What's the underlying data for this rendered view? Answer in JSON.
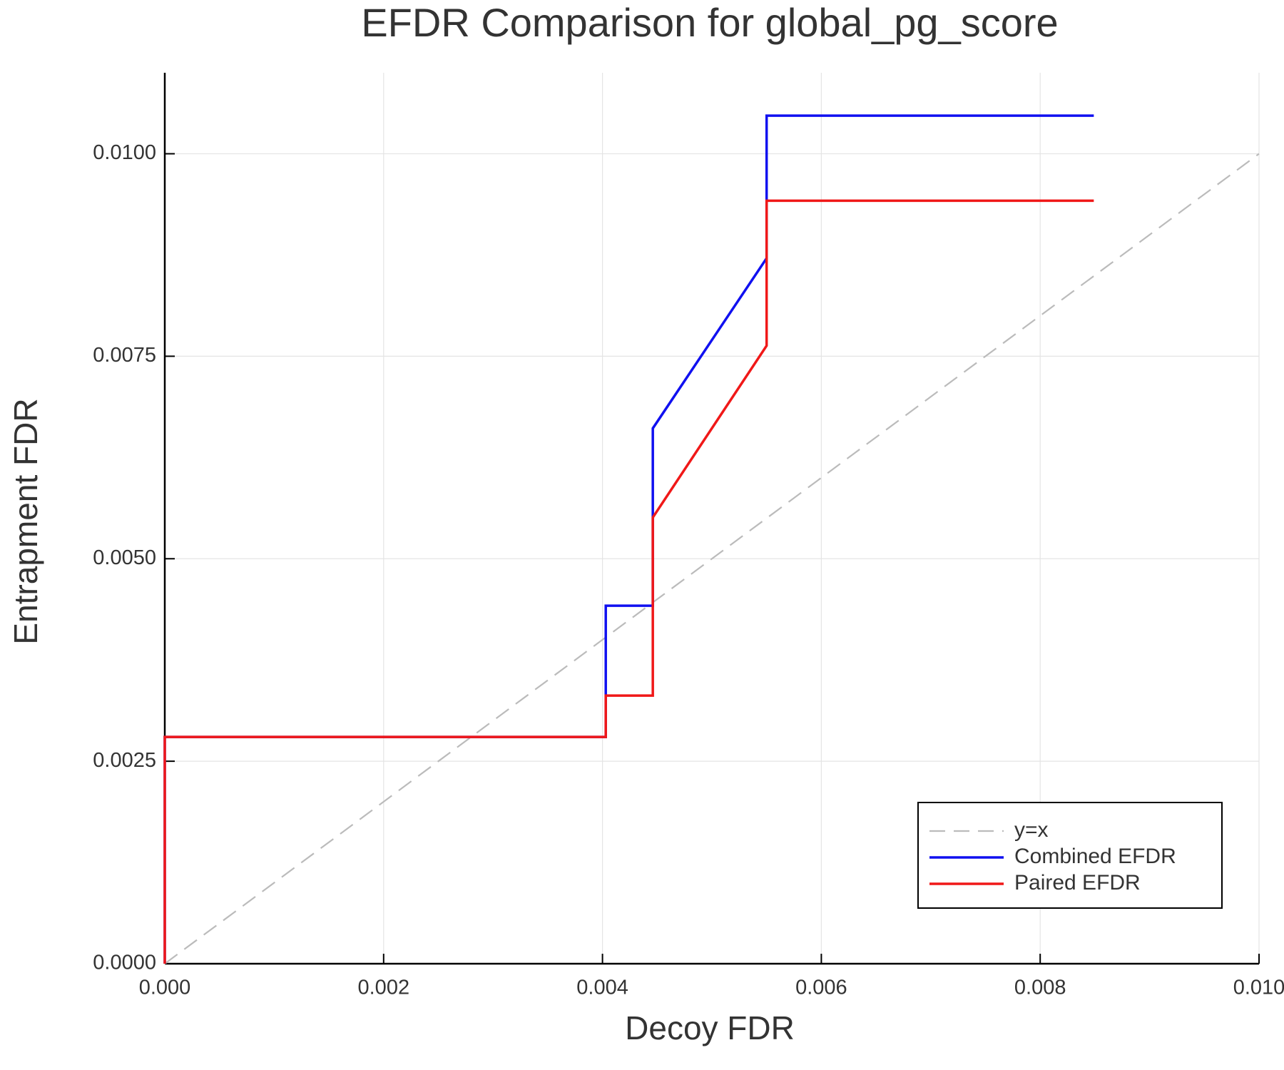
{
  "chart_data": {
    "type": "line",
    "title": "EFDR Comparison for global_pg_score",
    "x_label": "Decoy FDR",
    "y_label": "Entrapment FDR",
    "xlim": [
      0,
      0.01
    ],
    "ylim": [
      0,
      0.011
    ],
    "xticks": [
      {
        "value": 0,
        "label": "0.000"
      },
      {
        "value": 0.002,
        "label": "0.002"
      },
      {
        "value": 0.004,
        "label": "0.004"
      },
      {
        "value": 0.006,
        "label": "0.006"
      },
      {
        "value": 0.008,
        "label": "0.008"
      },
      {
        "value": 0.01,
        "label": "0.010"
      }
    ],
    "yticks": [
      {
        "value": 0,
        "label": "0.0000"
      },
      {
        "value": 0.0025,
        "label": "0.0025"
      },
      {
        "value": 0.005,
        "label": "0.0050"
      },
      {
        "value": 0.0075,
        "label": "0.0075"
      },
      {
        "value": 0.01,
        "label": "0.0100"
      }
    ],
    "grid": true,
    "legend": "lower right",
    "series": [
      {
        "name": "y=x",
        "color": "#bbbbbb",
        "dashed": true,
        "x": [
          0,
          0.01
        ],
        "values": [
          0,
          0.01
        ]
      },
      {
        "name": "Combined EFDR",
        "color": "#1010f0",
        "x": [
          0,
          0,
          0.00403,
          0.00403,
          0.00446,
          0.00446,
          0.0055,
          0.0055,
          0.00849
        ],
        "values": [
          0,
          0.0028,
          0.0028,
          0.00442,
          0.00442,
          0.00661,
          0.00871,
          0.01047,
          0.01047
        ]
      },
      {
        "name": "Paired EFDR",
        "color": "#f01818",
        "x": [
          0,
          0,
          0.00403,
          0.00403,
          0.00446,
          0.00446,
          0.0055,
          0.0055,
          0.00849
        ],
        "values": [
          0,
          0.0028,
          0.0028,
          0.00331,
          0.00331,
          0.00551,
          0.00763,
          0.00942,
          0.00942
        ]
      }
    ]
  }
}
